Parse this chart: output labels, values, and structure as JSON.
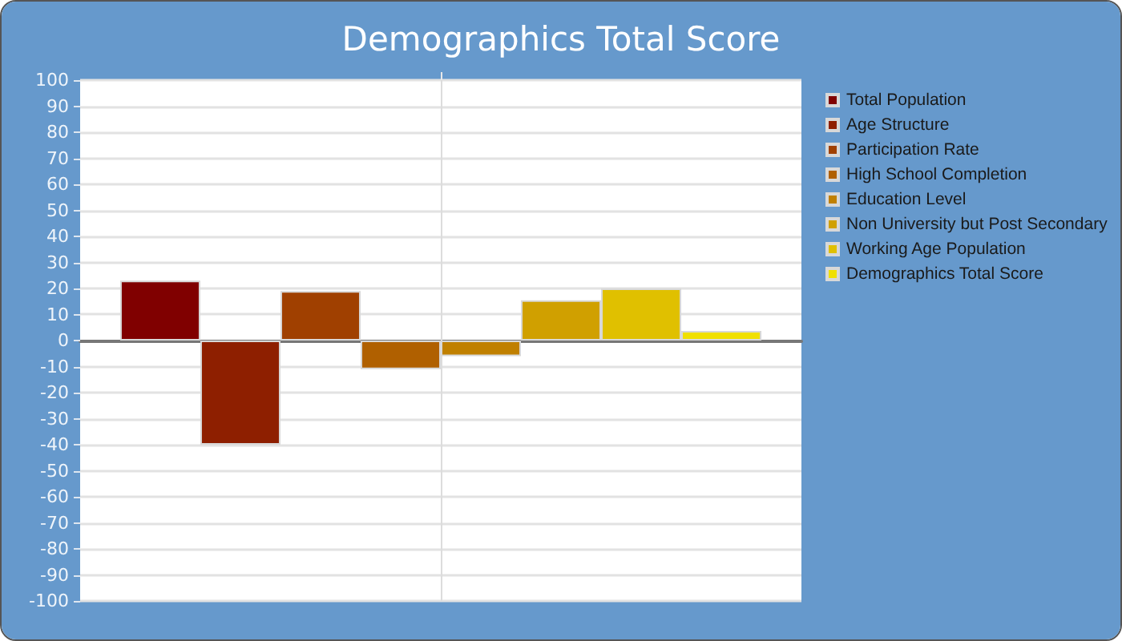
{
  "chart_data": {
    "type": "bar",
    "title": "Demographics Total Score",
    "categories": [
      null
    ],
    "series": [
      {
        "name": "Total Population",
        "color": "#800000",
        "values": [
          23
        ]
      },
      {
        "name": "Age Structure",
        "color": "#8e1f00",
        "values": [
          -40
        ]
      },
      {
        "name": "Participation Rate",
        "color": "#a04000",
        "values": [
          19
        ]
      },
      {
        "name": "High School Completion",
        "color": "#b06000",
        "values": [
          -11
        ]
      },
      {
        "name": "Education Level",
        "color": "#c08000",
        "values": [
          -6
        ]
      },
      {
        "name": "Non University but Post Secondary",
        "color": "#d0a000",
        "values": [
          15.5
        ]
      },
      {
        "name": "Working Age Population",
        "color": "#e0c000",
        "values": [
          20
        ]
      },
      {
        "name": "Demographics Total Score",
        "color": "#f0e000",
        "values": [
          3.7
        ]
      }
    ],
    "ylim": [
      -100,
      100
    ],
    "yticks": [
      -100,
      -90,
      -80,
      -70,
      -60,
      -50,
      -40,
      -30,
      -20,
      -10,
      0,
      10,
      20,
      30,
      40,
      50,
      60,
      70,
      80,
      90,
      100
    ],
    "grid": true,
    "legend": "right"
  }
}
